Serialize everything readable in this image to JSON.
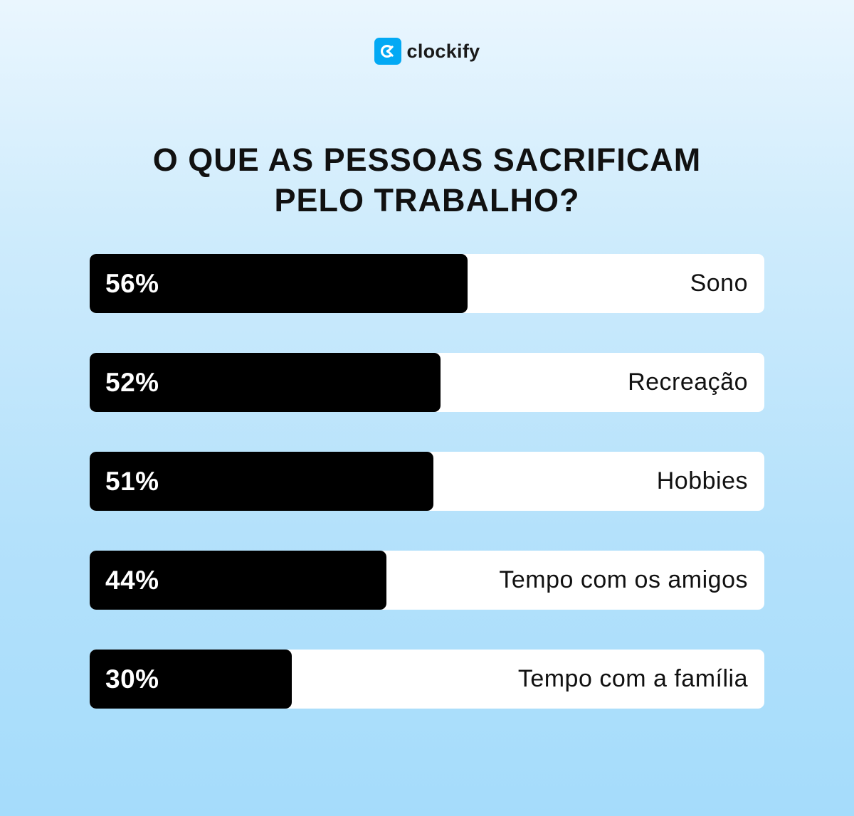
{
  "brand": {
    "name": "clockify",
    "icon": "clockify-logo-icon",
    "color": "#03a9f4"
  },
  "chart_data": {
    "type": "bar",
    "orientation": "horizontal",
    "title_lines": [
      "O QUE AS PESSOAS SACRIFICAM",
      "PELO TRABALHO?"
    ],
    "categories": [
      "Sono",
      "Recreação",
      "Hobbies",
      "Tempo com os amigos",
      "Tempo com a família"
    ],
    "values": [
      56,
      52,
      51,
      44,
      30
    ],
    "value_labels": [
      "56%",
      "52%",
      "51%",
      "44%",
      "30%"
    ],
    "unit": "%",
    "xlim": [
      0,
      100
    ],
    "bar_color": "#000000",
    "track_color": "#ffffff",
    "grid": false,
    "legend": "none"
  }
}
